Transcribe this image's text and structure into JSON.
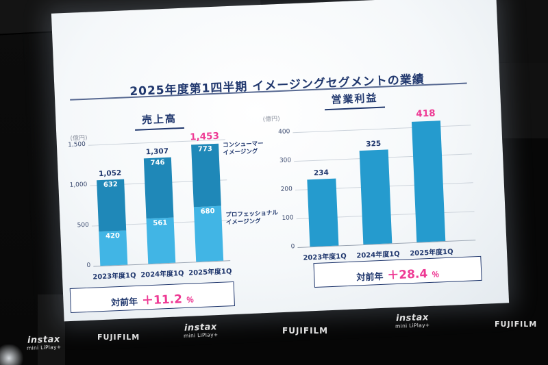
{
  "slide": {
    "title": "2025年度第1四半期 イメージングセグメントの業績",
    "colors": {
      "navy": "#21386e",
      "pink": "#ee3a94",
      "bar_consumer": "#1f88b8",
      "bar_professional": "#41b5e5",
      "bar_profit": "#259bce",
      "grid": "#ccd3db"
    },
    "revenue": {
      "header": "売上高",
      "unit": "(億円)",
      "consumer_label": [
        "コンシューマー",
        "イメージング"
      ],
      "professional_label": [
        "プロフェッショナル",
        "イメージング"
      ],
      "yoy": {
        "label": "対前年",
        "value": "＋11.2",
        "pct": "％"
      }
    },
    "profit": {
      "header": "営業利益",
      "unit": "(億円)",
      "yoy": {
        "label": "対前年",
        "value": "＋28.4",
        "pct": "％"
      }
    }
  },
  "chart_data": [
    {
      "type": "bar",
      "stacked": true,
      "title": "売上高",
      "unit": "億円",
      "categories": [
        "2023年度1Q",
        "2024年度1Q",
        "2025年度1Q"
      ],
      "series": [
        {
          "name": "プロフェッショナルイメージング",
          "values": [
            420,
            561,
            680
          ]
        },
        {
          "name": "コンシューマーイメージング",
          "values": [
            632,
            746,
            773
          ]
        }
      ],
      "totals": [
        1052,
        1307,
        1453
      ],
      "ylim": [
        0,
        1500
      ],
      "yticks": [
        0,
        500,
        1000,
        1500
      ],
      "grid": true,
      "legend_position": "right",
      "annotation": "対前年 ＋11.2％"
    },
    {
      "type": "bar",
      "title": "営業利益",
      "unit": "億円",
      "categories": [
        "2023年度1Q",
        "2024年度1Q",
        "2025年度1Q"
      ],
      "values": [
        234,
        325,
        418
      ],
      "ylim": [
        0,
        440
      ],
      "yticks": [
        0,
        100,
        200,
        300,
        400
      ],
      "grid": true,
      "annotation": "対前年 ＋28.4％"
    }
  ],
  "venue": {
    "fujifilm": "FUJIFILM",
    "instax_line1": "instax",
    "instax_line2": "mini LiPlay+"
  }
}
